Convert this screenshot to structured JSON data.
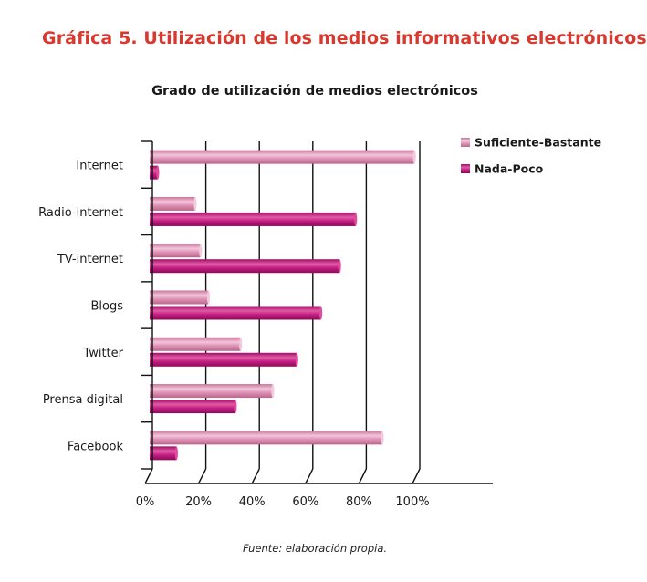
{
  "figure_title": "Gráfica 5. Utilización de los medios informativos electrónicos",
  "source": "Fuente: elaboración propia.",
  "colors": {
    "series_1": "#d681a8",
    "series_2": "#b81a7a",
    "title_red": "#d8382e"
  },
  "chart_data": {
    "type": "bar",
    "orientation": "horizontal",
    "title": "Grado de utilización de medios electrónicos",
    "categories": [
      "Internet",
      "Radio-internet",
      "TV-internet",
      "Blogs",
      "Twitter",
      "Prensa digital",
      "Facebook"
    ],
    "series": [
      {
        "name": "Suficiente-Bastante",
        "values": [
          98,
          16,
          18,
          21,
          33,
          45,
          86
        ]
      },
      {
        "name": "Nada-Poco",
        "values": [
          2,
          76,
          70,
          63,
          54,
          31,
          9
        ]
      }
    ],
    "xlim": [
      0,
      100
    ],
    "x_ticks": [
      "0%",
      "20%",
      "40%",
      "60%",
      "80%",
      "100%"
    ],
    "grid": true,
    "legend_position": "top-right"
  }
}
